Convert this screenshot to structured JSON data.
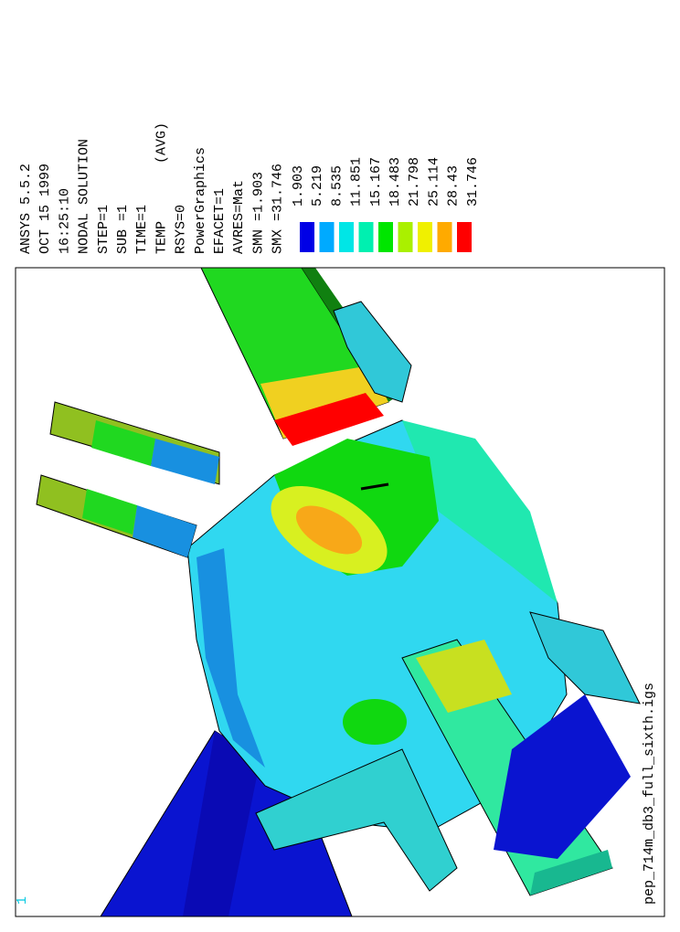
{
  "header": {
    "lines": [
      "ANSYS 5.5.2",
      "OCT 15 1999",
      "16:25:10",
      "NODAL SOLUTION",
      "STEP=1",
      "SUB =1",
      "TIME=1",
      "TEMP       (AVG)",
      "RSYS=0",
      "PowerGraphics",
      "EFACET=1",
      "AVRES=Mat",
      "SMN =1.903",
      "SMX =31.746"
    ]
  },
  "legend": {
    "values": [
      "1.903",
      "5.219",
      "8.535",
      "11.851",
      "15.167",
      "18.483",
      "21.798",
      "25.114",
      "28.43",
      "31.746"
    ],
    "colors": [
      "#0000e6",
      "#00aaff",
      "#00e6e6",
      "#00f0b0",
      "#00e600",
      "#aaf000",
      "#f0f000",
      "#ffaa00",
      "#ff0000"
    ]
  },
  "footer": {
    "filename": "pep_714m_db3_full_sixth.igs",
    "window": "1"
  }
}
